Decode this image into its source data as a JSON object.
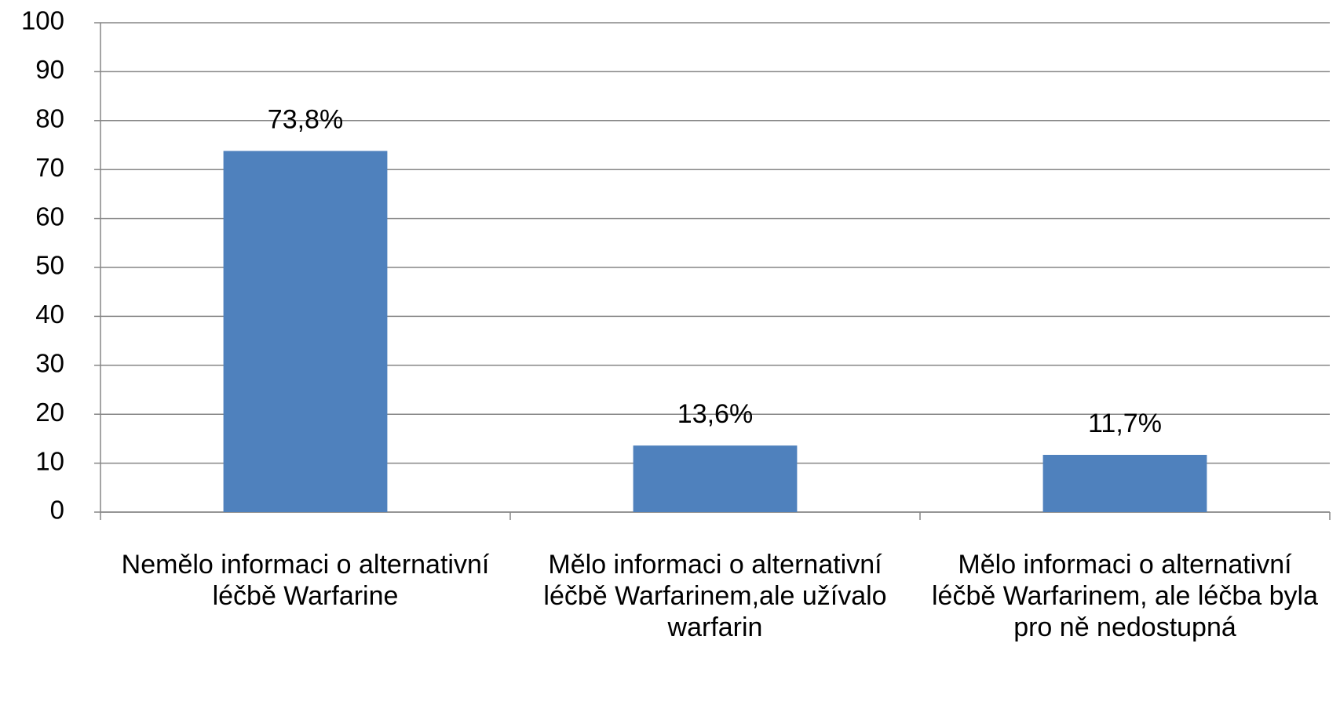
{
  "chart_data": {
    "type": "bar",
    "categories": [
      "Nemělo informaci o alternativní léčbě Warfarine",
      "Mělo informaci o alternativní léčbě Warfarinem,ale užívalo warfarin",
      "Mělo informaci o alternativní léčbě Warfarinem, ale léčba byla pro ně nedostupná"
    ],
    "values": [
      73.8,
      13.6,
      11.7
    ],
    "value_labels": [
      "73,8%",
      "13,6%",
      "11,7%"
    ],
    "color": "#4f81bd",
    "ylim": [
      0,
      100
    ],
    "yticks": [
      0,
      10,
      20,
      30,
      40,
      50,
      60,
      70,
      80,
      90,
      100
    ],
    "grid": true
  }
}
